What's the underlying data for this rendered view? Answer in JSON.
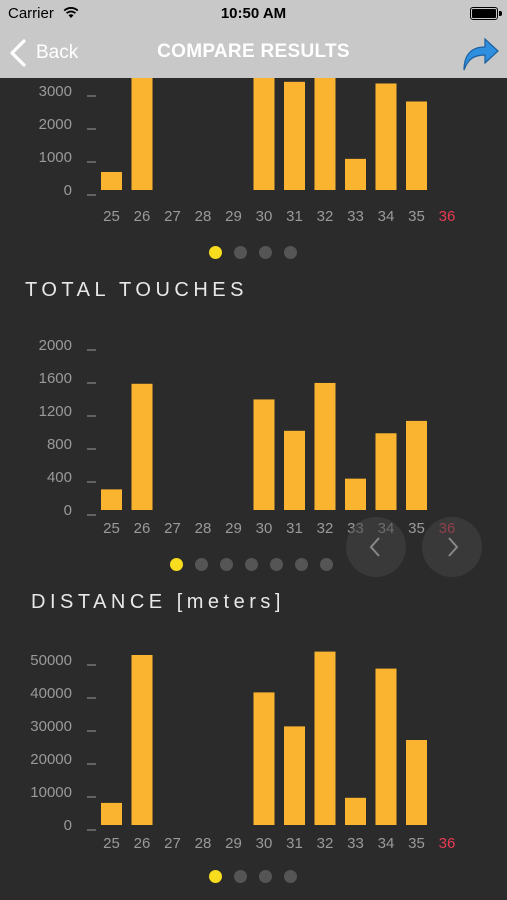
{
  "status_bar": {
    "carrier": "Carrier",
    "time": "10:50 AM"
  },
  "nav": {
    "back_label": "Back",
    "title": "COMPARE RESULTS"
  },
  "colors": {
    "bar": "#fbb430",
    "highlight_tick": "#e83a54",
    "active_dot": "#f8dc1e",
    "inactive_dot": "#555555"
  },
  "sections": [
    {
      "title": "",
      "pager": {
        "count": 4,
        "active": 0
      }
    },
    {
      "title": "TOTAL TOUCHES",
      "pager": {
        "count": 7,
        "active": 0
      }
    },
    {
      "title": "DISTANCE [meters]",
      "pager": {
        "count": 4,
        "active": 0
      }
    }
  ],
  "chart_data": [
    {
      "type": "bar",
      "categories": [
        "25",
        "26",
        "27",
        "28",
        "29",
        "30",
        "31",
        "32",
        "33",
        "34",
        "35",
        "36"
      ],
      "highlight_category": "36",
      "yticks": [
        "0",
        "1000",
        "2000",
        "3000"
      ],
      "ylim": [
        0,
        3600
      ],
      "values": [
        550,
        3700,
        0,
        0,
        0,
        3700,
        3300,
        3700,
        950,
        3250,
        2700,
        0
      ]
    },
    {
      "type": "bar",
      "title": "TOTAL TOUCHES",
      "categories": [
        "25",
        "26",
        "27",
        "28",
        "29",
        "30",
        "31",
        "32",
        "33",
        "34",
        "35",
        "36"
      ],
      "highlight_category": "36",
      "yticks": [
        "0",
        "400",
        "800",
        "1200",
        "1600",
        "2000"
      ],
      "ylim": [
        0,
        2000
      ],
      "values": [
        250,
        1530,
        0,
        0,
        0,
        1340,
        960,
        1540,
        380,
        930,
        1080,
        0
      ]
    },
    {
      "type": "bar",
      "title": "DISTANCE [meters]",
      "categories": [
        "25",
        "26",
        "27",
        "28",
        "29",
        "30",
        "31",
        "32",
        "33",
        "34",
        "35",
        "36"
      ],
      "highlight_category": "36",
      "yticks": [
        "0",
        "10000",
        "20000",
        "30000",
        "40000",
        "50000"
      ],
      "ylim": [
        0,
        50000
      ],
      "values": [
        6500,
        50000,
        0,
        0,
        0,
        39000,
        29000,
        51000,
        8000,
        46000,
        25000,
        0
      ]
    }
  ]
}
